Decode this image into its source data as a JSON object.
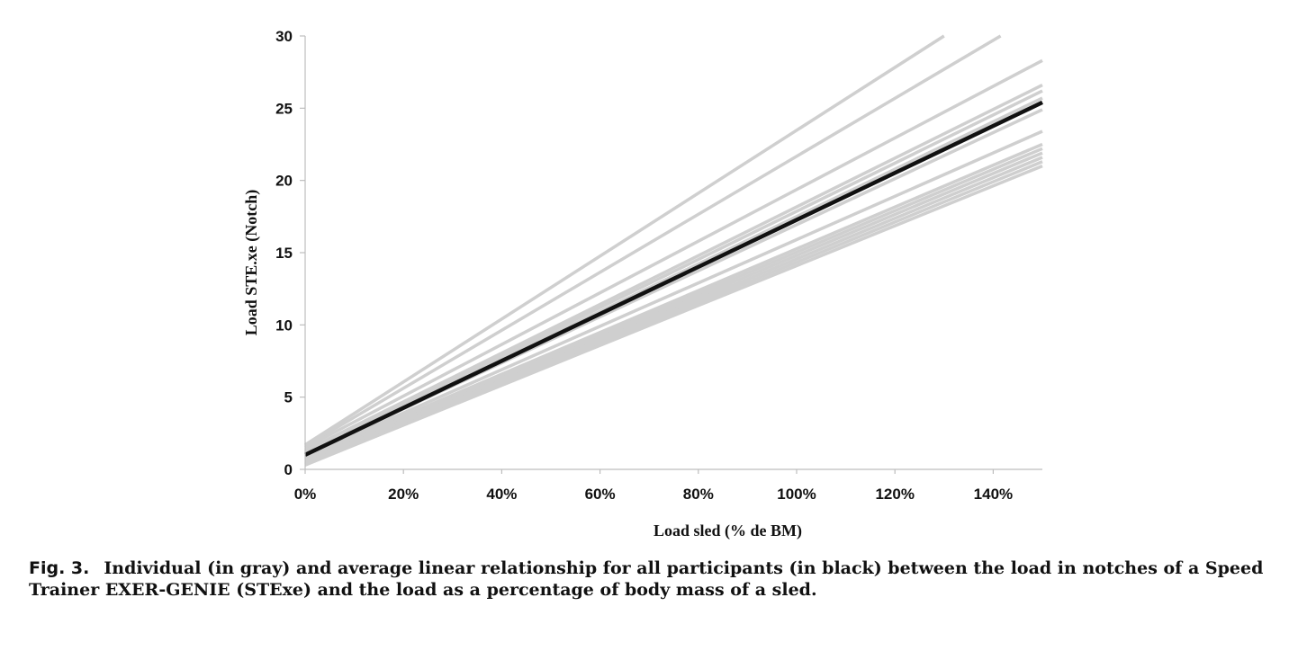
{
  "chart_data": {
    "type": "line",
    "xlabel": "Load sled (% de BM)",
    "ylabel": "Load STE.xe (Notch)",
    "xlim": [
      0,
      150
    ],
    "ylim": [
      0,
      30
    ],
    "x_ticks": [
      0,
      20,
      40,
      60,
      80,
      100,
      120,
      140
    ],
    "x_tick_labels": [
      "0%",
      "20%",
      "40%",
      "60%",
      "80%",
      "100%",
      "120%",
      "140%"
    ],
    "y_ticks": [
      0,
      5,
      10,
      15,
      20,
      25,
      30
    ],
    "y_tick_labels": [
      "0",
      "5",
      "10",
      "15",
      "20",
      "25",
      "30"
    ],
    "grid": false,
    "series": [
      {
        "color": "#cfcfcf",
        "x": [
          0,
          130
        ],
        "y": [
          1.7,
          30
        ]
      },
      {
        "color": "#cfcfcf",
        "x": [
          0,
          141.5
        ],
        "y": [
          1.6,
          30
        ]
      },
      {
        "color": "#cfcfcf",
        "x": [
          0,
          150
        ],
        "y": [
          1.5,
          28.3
        ]
      },
      {
        "color": "#cfcfcf",
        "x": [
          0,
          150
        ],
        "y": [
          1.3,
          26.6
        ]
      },
      {
        "color": "#cfcfcf",
        "x": [
          0,
          150
        ],
        "y": [
          1.2,
          26.2
        ]
      },
      {
        "color": "#cfcfcf",
        "x": [
          0,
          150
        ],
        "y": [
          1.1,
          25.7
        ]
      },
      {
        "color": "#cfcfcf",
        "x": [
          0,
          150
        ],
        "y": [
          1.0,
          24.9
        ]
      },
      {
        "color": "#cfcfcf",
        "x": [
          0,
          150
        ],
        "y": [
          0.9,
          23.4
        ]
      },
      {
        "color": "#cfcfcf",
        "x": [
          0,
          150
        ],
        "y": [
          0.8,
          22.5
        ]
      },
      {
        "color": "#cfcfcf",
        "x": [
          0,
          150
        ],
        "y": [
          0.7,
          22.2
        ]
      },
      {
        "color": "#cfcfcf",
        "x": [
          0,
          150
        ],
        "y": [
          0.6,
          21.9
        ]
      },
      {
        "color": "#cfcfcf",
        "x": [
          0,
          150
        ],
        "y": [
          0.5,
          21.6
        ]
      },
      {
        "color": "#cfcfcf",
        "x": [
          0,
          150
        ],
        "y": [
          0.4,
          21.3
        ]
      },
      {
        "color": "#cfcfcf",
        "x": [
          0,
          150
        ],
        "y": [
          0.3,
          21.0
        ]
      },
      {
        "color": "#111111",
        "x": [
          0,
          150
        ],
        "y": [
          1.0,
          25.4
        ]
      }
    ]
  },
  "caption": {
    "label": "Fig. 3.",
    "text": "Individual (in gray) and average linear relationship for all participants (in black) between the load in notches of a Speed Trainer EXER-GENIE (STExe) and the load as a percentage of body mass of a sled."
  }
}
